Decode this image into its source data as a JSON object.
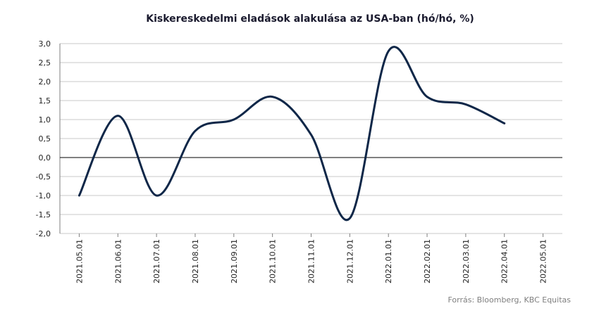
{
  "chart_data": {
    "type": "line",
    "title": "Kiskereskedelmi eladások alakulása az USA-ban (hó/hó, %)",
    "source": "Forrás: Bloomberg, KBC Equitas",
    "categories": [
      "2021.05.01",
      "2021.06.01",
      "2021.07.01",
      "2021.08.01",
      "2021.09.01",
      "2021.10.01",
      "2021.11.01",
      "2021.12.01",
      "2022.01.01",
      "2022.02.01",
      "2022.03.01",
      "2022.04.01",
      "2022.05.01"
    ],
    "series": [
      {
        "values": [
          -1.0,
          1.1,
          -1.0,
          0.7,
          1.0,
          1.6,
          0.6,
          -1.6,
          2.8,
          1.6,
          1.4,
          0.9,
          null
        ]
      }
    ],
    "ylim": [
      -2.0,
      3.0
    ],
    "yticks": [
      "3,0",
      "2,5",
      "2,0",
      "1,5",
      "1,0",
      "0,5",
      "0,0",
      "-0,5",
      "-1,0",
      "-1,5",
      "-2,0"
    ],
    "ytick_values": [
      3.0,
      2.5,
      2.0,
      1.5,
      1.0,
      0.5,
      0.0,
      -0.5,
      -1.0,
      -1.5,
      -2.0
    ],
    "grid": true,
    "legend": "none",
    "colors": {
      "line": "#0f2748",
      "grid": "#c9c9c9",
      "zero_line": "#000000",
      "axis": "#7f7f7f"
    }
  }
}
